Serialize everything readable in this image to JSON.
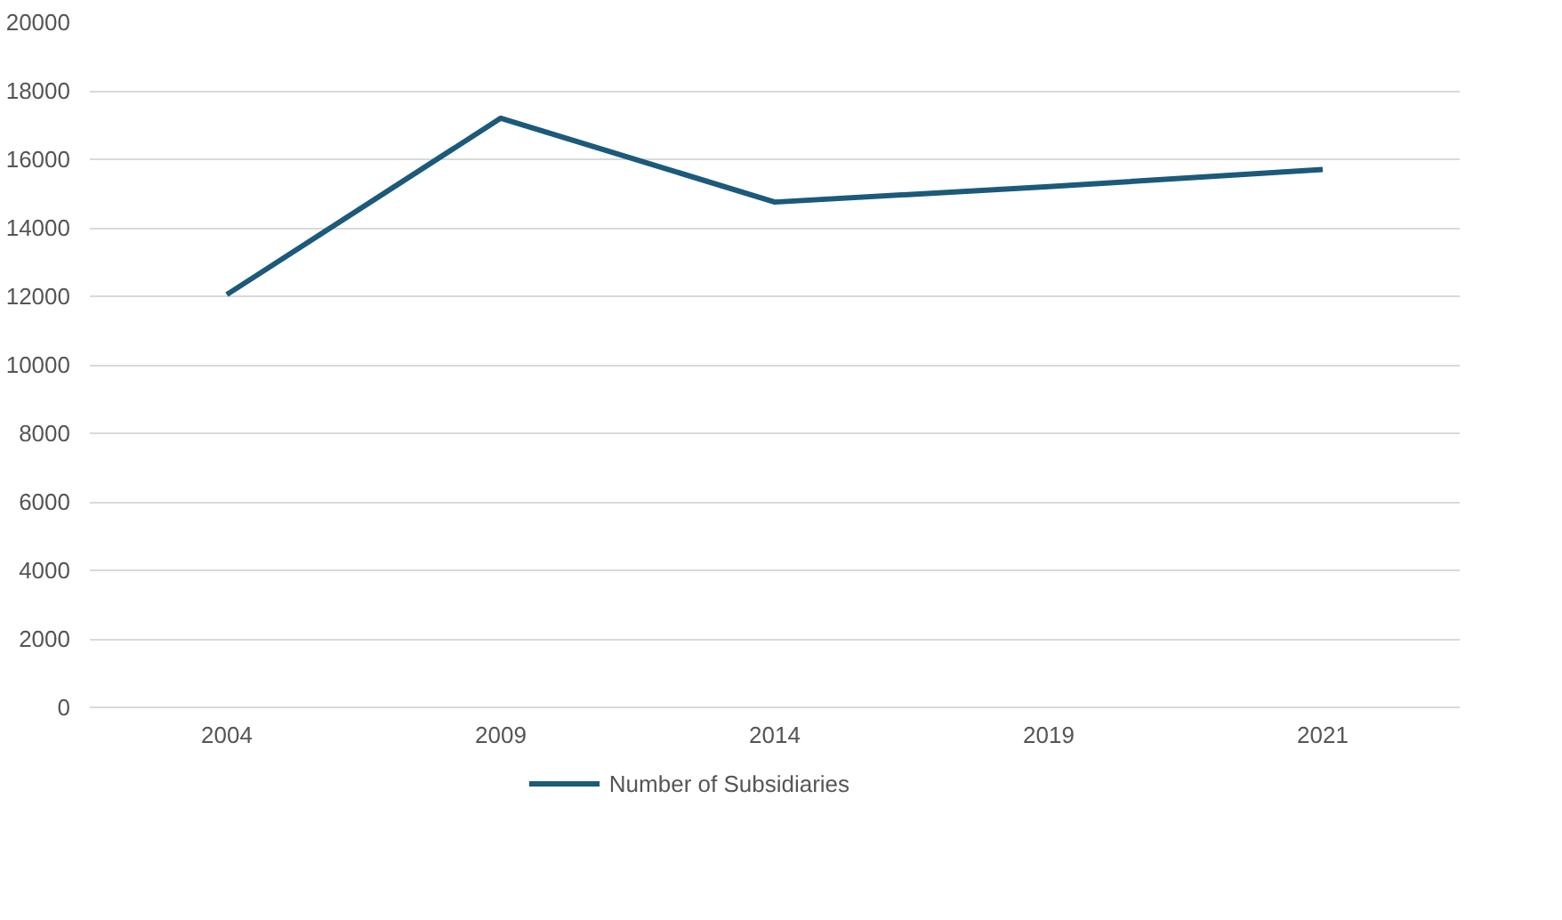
{
  "chart_data": {
    "type": "line",
    "categories": [
      "2004",
      "2009",
      "2014",
      "2019",
      "2021"
    ],
    "series": [
      {
        "name": "Number of Subsidiaries",
        "color": "#1b5a7a",
        "values": [
          12050,
          17200,
          14750,
          15200,
          15700
        ]
      }
    ],
    "ylim": [
      0,
      20000
    ],
    "yticks": [
      0,
      2000,
      4000,
      6000,
      8000,
      10000,
      12000,
      14000,
      16000,
      18000,
      20000
    ],
    "grid": "y",
    "legend": "bottom",
    "marker": "none",
    "line_style": "solid"
  }
}
